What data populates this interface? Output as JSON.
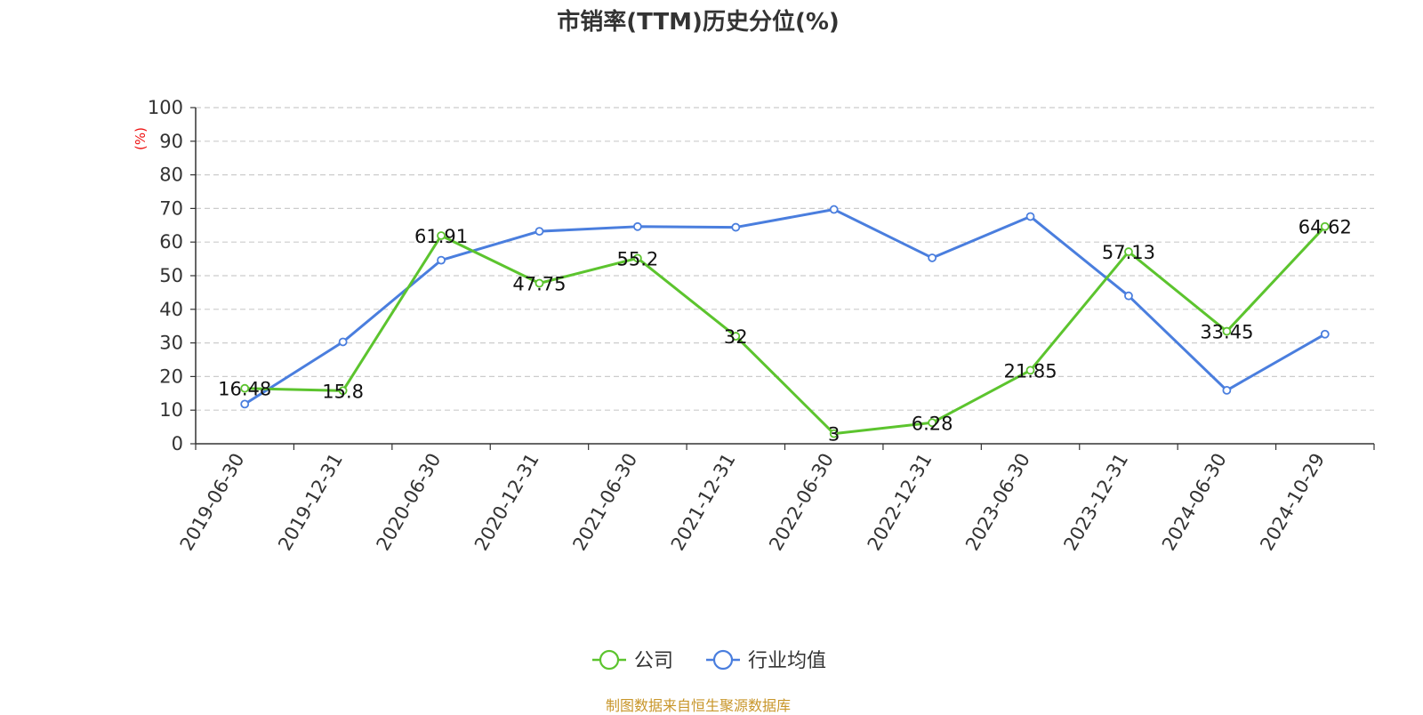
{
  "chart_data": {
    "type": "line",
    "title": "市销率(TTM)历史分位(%)",
    "ylabel": "(%)",
    "xlabel": "",
    "ylim": [
      0,
      100
    ],
    "yticks": [
      "0",
      "10",
      "20",
      "30",
      "40",
      "50",
      "60",
      "70",
      "80",
      "90",
      "100"
    ],
    "categories": [
      "2019-06-30",
      "2019-12-31",
      "2020-06-30",
      "2020-12-31",
      "2021-06-30",
      "2021-12-31",
      "2022-06-30",
      "2022-12-31",
      "2023-06-30",
      "2023-12-31",
      "2024-06-30",
      "2024-10-29"
    ],
    "grid": true,
    "legend": "bottom-center",
    "series": [
      {
        "name": "公司",
        "color": "#5cc42e",
        "values": [
          16.48,
          15.8,
          61.91,
          47.75,
          55.2,
          32,
          3,
          6.28,
          21.85,
          57.13,
          33.45,
          64.62
        ],
        "labels": [
          "16.48",
          "15.8",
          "61.91",
          "47.75",
          "55.2",
          "32",
          "3",
          "6.28",
          "21.85",
          "57.13",
          "33.45",
          "64.62"
        ]
      },
      {
        "name": "行业均值",
        "color": "#4a7ede",
        "values": [
          11.8,
          30.3,
          54.6,
          63.2,
          64.6,
          64.4,
          69.7,
          55.3,
          67.6,
          44.0,
          15.9,
          32.6
        ]
      }
    ]
  },
  "source": "制图数据来自恒生聚源数据库"
}
